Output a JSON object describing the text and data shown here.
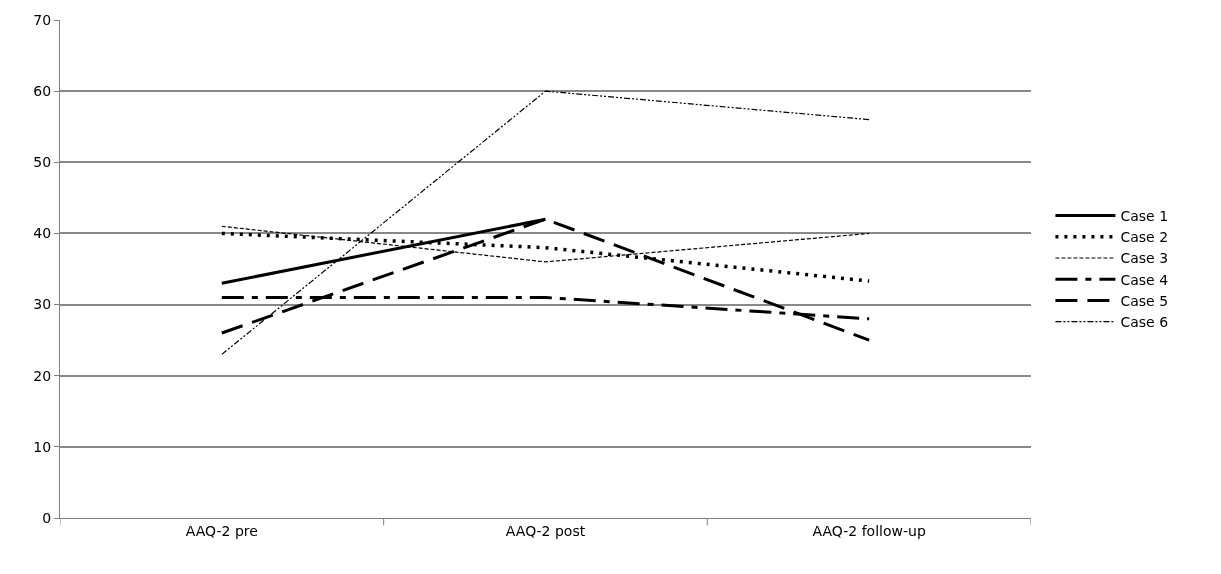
{
  "chart_data": {
    "type": "line",
    "categories": [
      "AAQ-2 pre",
      "AAQ-2 post",
      "AAQ-2 follow-up"
    ],
    "series": [
      {
        "name": "Case 1",
        "color": "#000000",
        "line_style": "solid",
        "values": [
          33,
          42,
          null
        ]
      },
      {
        "name": "Case 2",
        "color": "#000000",
        "line_style": "dotted",
        "values": [
          40,
          38,
          33.3
        ]
      },
      {
        "name": "Case 3",
        "color": "#000000",
        "line_style": "dashed",
        "values": [
          41,
          36,
          40
        ]
      },
      {
        "name": "Case 4",
        "color": "#000000",
        "line_style": "longdashdot",
        "values": [
          31,
          31,
          28
        ]
      },
      {
        "name": "Case 5",
        "color": "#000000",
        "line_style": "longdash",
        "values": [
          26,
          42,
          25
        ]
      },
      {
        "name": "Case 6",
        "color": "#000000",
        "line_style": "dashdot",
        "values": [
          23,
          60,
          56
        ]
      }
    ],
    "ylim": [
      0,
      70
    ],
    "yticks": [
      0,
      10,
      20,
      30,
      40,
      50,
      60,
      70
    ],
    "grid": "y",
    "legend": "right",
    "marker": "none"
  }
}
